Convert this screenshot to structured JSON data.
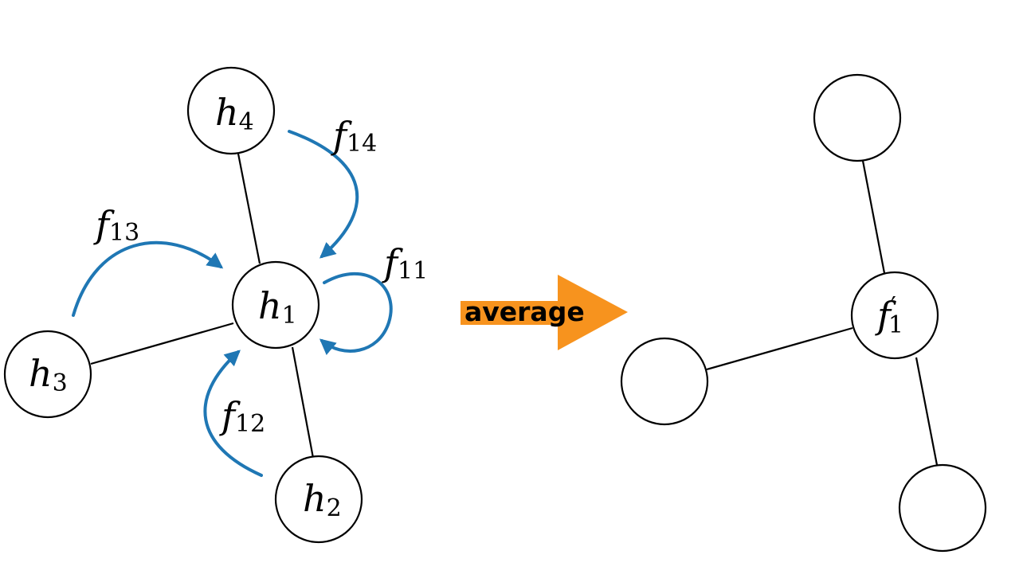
{
  "colors": {
    "flow_arrow": "#1f77b4",
    "average_arrow": "#f7931e",
    "node_stroke": "#000000",
    "node_fill": "#ffffff"
  },
  "left_graph": {
    "nodes": {
      "h1": {
        "symbol": "h",
        "sub": "1"
      },
      "h2": {
        "symbol": "h",
        "sub": "2"
      },
      "h3": {
        "symbol": "h",
        "sub": "3"
      },
      "h4": {
        "symbol": "h",
        "sub": "4"
      }
    },
    "messages": {
      "f11": {
        "symbol": "f",
        "sub": "11"
      },
      "f12": {
        "symbol": "f",
        "sub": "12"
      },
      "f13": {
        "symbol": "f",
        "sub": "13"
      },
      "f14": {
        "symbol": "f",
        "sub": "14"
      }
    }
  },
  "operation": {
    "label": "average"
  },
  "right_graph": {
    "center_node": {
      "symbol": "f",
      "prime": "′",
      "sub": "1"
    }
  }
}
